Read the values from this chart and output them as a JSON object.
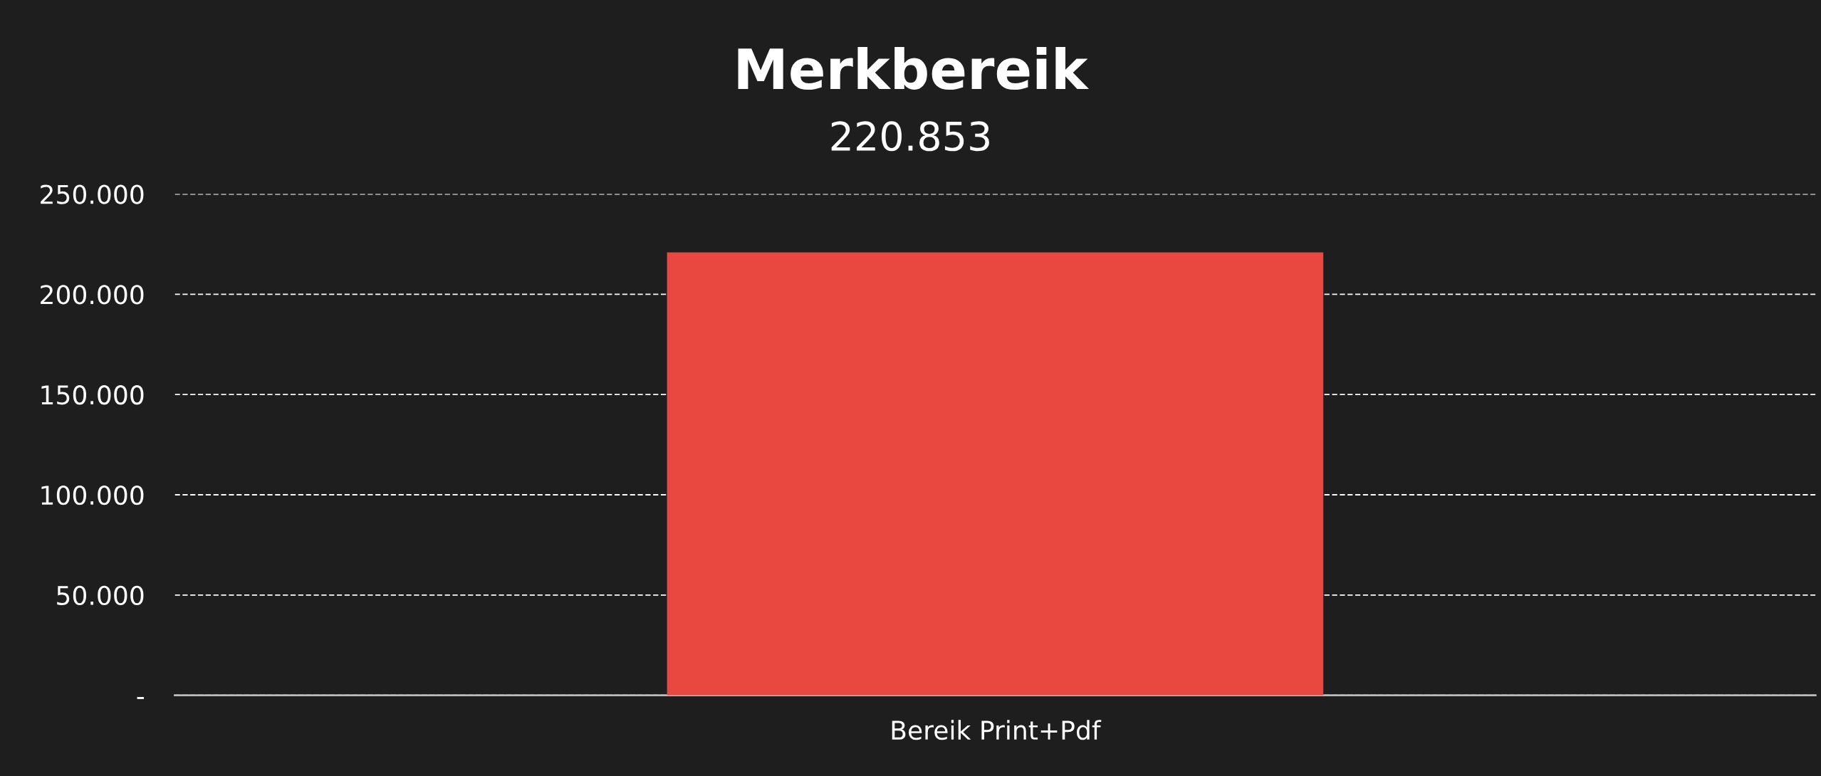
{
  "chart_data": {
    "type": "bar",
    "title": "Merkbereik",
    "subtitle": "220.853",
    "categories": [
      "Bereik Print+Pdf"
    ],
    "values": [
      220853
    ],
    "color": "#e84840",
    "ylim": [
      0,
      250000
    ],
    "yticks": [
      {
        "value": 0,
        "label": "-"
      },
      {
        "value": 50000,
        "label": "50.000"
      },
      {
        "value": 100000,
        "label": "100.000"
      },
      {
        "value": 150000,
        "label": "150.000"
      },
      {
        "value": 200000,
        "label": "200.000"
      },
      {
        "value": 250000,
        "label": "250.000"
      }
    ],
    "grid": "y",
    "legend": false
  }
}
